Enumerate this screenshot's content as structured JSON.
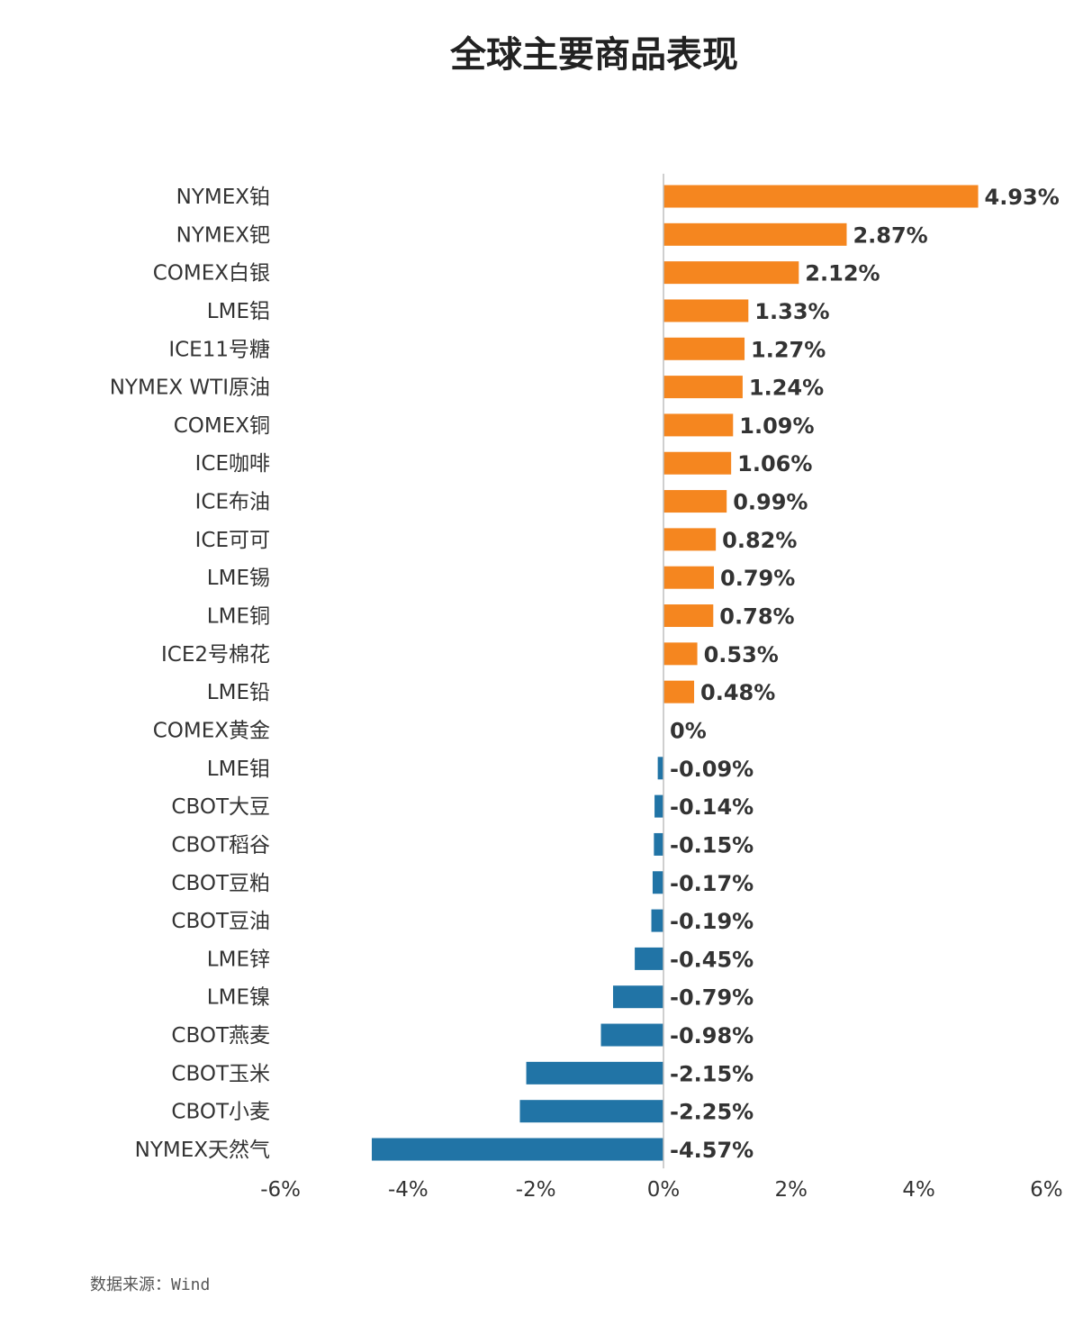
{
  "chart_data": {
    "type": "bar",
    "orientation": "horizontal",
    "title": "全球主要商品表现",
    "categories": [
      "NYMEX铂",
      "NYMEX钯",
      "COMEX白银",
      "LME铝",
      "ICE11号糖",
      "NYMEX WTI原油",
      "COMEX铜",
      "ICE咖啡",
      "ICE布油",
      "ICE可可",
      "LME锡",
      "LME铜",
      "ICE2号棉花",
      "LME铅",
      "COMEX黄金",
      "LME钼",
      "CBOT大豆",
      "CBOT稻谷",
      "CBOT豆粕",
      "CBOT豆油",
      "LME锌",
      "LME镍",
      "CBOT燕麦",
      "CBOT玉米",
      "CBOT小麦",
      "NYMEX天然气"
    ],
    "values": [
      4.93,
      2.87,
      2.12,
      1.33,
      1.27,
      1.24,
      1.09,
      1.06,
      0.99,
      0.82,
      0.79,
      0.78,
      0.53,
      0.48,
      0,
      -0.09,
      -0.14,
      -0.15,
      -0.17,
      -0.19,
      -0.45,
      -0.79,
      -0.98,
      -2.15,
      -2.25,
      -4.57
    ],
    "value_labels": [
      "4.93%",
      "2.87%",
      "2.12%",
      "1.33%",
      "1.27%",
      "1.24%",
      "1.09%",
      "1.06%",
      "0.99%",
      "0.82%",
      "0.79%",
      "0.78%",
      "0.53%",
      "0.48%",
      "0%",
      "-0.09%",
      "-0.14%",
      "-0.15%",
      "-0.17%",
      "-0.19%",
      "-0.45%",
      "-0.79%",
      "-0.98%",
      "-2.15%",
      "-2.25%",
      "-4.57%"
    ],
    "xlim": [
      -6,
      6
    ],
    "xticks": [
      -6,
      -4,
      -2,
      0,
      2,
      4,
      6
    ],
    "xtick_labels": [
      "-6%",
      "-4%",
      "-2%",
      "0%",
      "2%",
      "4%",
      "6%"
    ],
    "xlabel": "",
    "ylabel": "",
    "grid": false,
    "colors": {
      "positive": "#F5861F",
      "negative": "#2174A6",
      "axis": "#BFBFBF",
      "text": "#333333"
    }
  },
  "footer": {
    "source": "数据来源：Wind"
  }
}
